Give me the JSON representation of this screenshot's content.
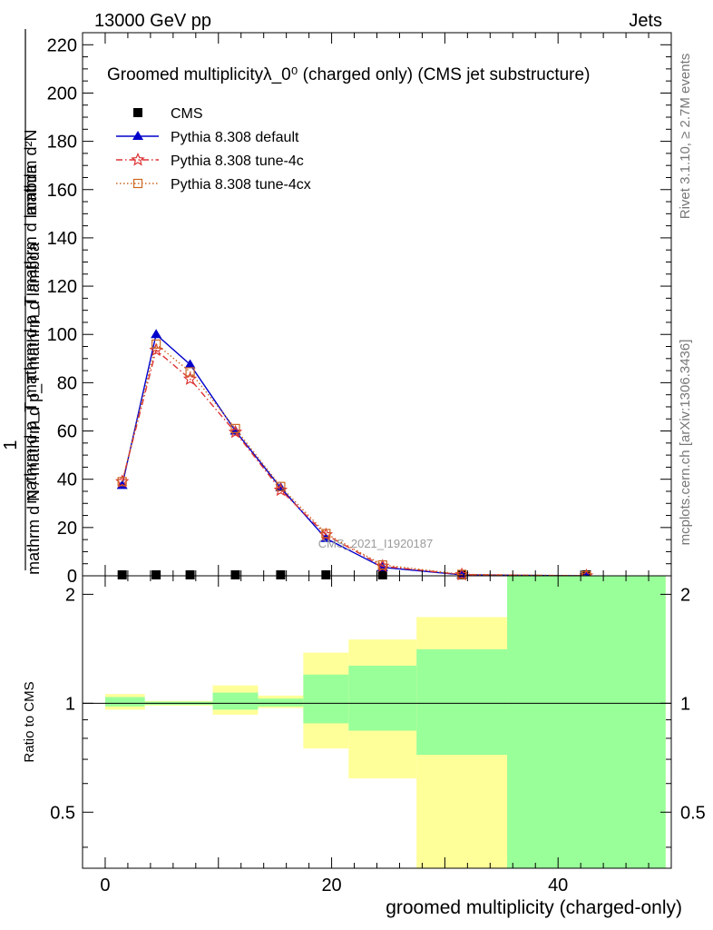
{
  "header": {
    "left": "13000 GeV pp",
    "right": "Jets"
  },
  "side_text": {
    "top": "Rivet 3.1.10, ≥ 2.7M events",
    "bottom": "mcplots.cern.ch [arXiv:1306.3436]"
  },
  "watermark": "CMS_2021_I1920187",
  "chart_data": [
    {
      "type": "line",
      "panel": "main",
      "title": "Groomed multiplicityλ_0⁰ (charged only) (CMS jet substructure)",
      "ylabel_numerator": "1",
      "ylabel_denominator": "mathrm d N / mathrm d p_T mathrm d lambda",
      "ylabel_top": "mathrm d²N",
      "ylabel_mid": "mathrm d p_T mathrm d p_T mathrm d lambda",
      "xlim": [
        -2,
        50
      ],
      "ylim": [
        0,
        225
      ],
      "yticks": [
        0,
        20,
        40,
        60,
        80,
        100,
        120,
        140,
        160,
        180,
        200,
        220
      ],
      "legend_position": "top-left",
      "series": [
        {
          "name": "CMS",
          "color": "#000000",
          "marker": "square",
          "x": [
            1.5,
            4.5,
            7.5,
            11.5,
            15.5,
            19.5,
            24.5,
            31.5,
            42.5
          ],
          "y": [
            0.4,
            0.4,
            0.4,
            0.4,
            0.4,
            0.4,
            0.4,
            0.4,
            0.4
          ]
        },
        {
          "name": "Pythia 8.308 default",
          "color": "#0000cc",
          "marker": "triangle",
          "dash": "solid",
          "x": [
            1.5,
            4.5,
            7.5,
            11.5,
            15.5,
            19.5,
            24.5,
            31.5,
            42.5
          ],
          "y": [
            37.5,
            100,
            87.5,
            60,
            36.5,
            15.5,
            3.5,
            0.4,
            0.0
          ]
        },
        {
          "name": "Pythia 8.308 tune-4c",
          "color": "#dd3333",
          "marker": "star",
          "dash": "dashdot",
          "x": [
            1.5,
            4.5,
            7.5,
            11.5,
            15.5,
            19.5,
            24.5,
            31.5,
            42.5
          ],
          "y": [
            39,
            93.5,
            81.5,
            59.5,
            35.5,
            17,
            4,
            0.5,
            0.0
          ]
        },
        {
          "name": "Pythia 8.308 tune-4cx",
          "color": "#cc6622",
          "marker": "open-square",
          "dash": "dotted",
          "x": [
            1.5,
            4.5,
            7.5,
            11.5,
            15.5,
            19.5,
            24.5,
            31.5,
            42.5
          ],
          "y": [
            39,
            96,
            84.5,
            61,
            37,
            17.5,
            4.5,
            0.6,
            0.0
          ]
        }
      ]
    },
    {
      "type": "area",
      "panel": "ratio",
      "ylabel": "Ratio to CMS",
      "xlabel": "groomed multiplicity (charged-only)",
      "xlim": [
        -2,
        50
      ],
      "ylim": [
        0.35,
        2.25
      ],
      "xticks": [
        0,
        20,
        40
      ],
      "yticks": [
        0.5,
        1,
        2
      ],
      "reference_line": 1,
      "band_colors": {
        "outer": "#ffff99",
        "inner": "#99ff99"
      },
      "bins": [
        {
          "x0": 0,
          "x1": 3.5,
          "outer": [
            0.96,
            1.06
          ],
          "inner": [
            0.98,
            1.04
          ]
        },
        {
          "x0": 3.5,
          "x1": 9.5,
          "outer": [
            0.985,
            1.015
          ],
          "inner": [
            0.99,
            1.01
          ]
        },
        {
          "x0": 9.5,
          "x1": 13.5,
          "outer": [
            0.93,
            1.12
          ],
          "inner": [
            0.96,
            1.07
          ]
        },
        {
          "x0": 13.5,
          "x1": 17.5,
          "outer": [
            0.97,
            1.05
          ],
          "inner": [
            0.98,
            1.03
          ]
        },
        {
          "x0": 17.5,
          "x1": 21.5,
          "outer": [
            0.75,
            1.38
          ],
          "inner": [
            0.88,
            1.2
          ]
        },
        {
          "x0": 21.5,
          "x1": 27.5,
          "outer": [
            0.62,
            1.5
          ],
          "inner": [
            0.84,
            1.27
          ]
        },
        {
          "x0": 27.5,
          "x1": 35.5,
          "outer": [
            0.35,
            1.73
          ],
          "inner": [
            0.72,
            1.41
          ]
        },
        {
          "x0": 35.5,
          "x1": 49.5,
          "outer": [
            0.35,
            2.25
          ],
          "inner": [
            0.35,
            2.25
          ]
        }
      ]
    }
  ]
}
